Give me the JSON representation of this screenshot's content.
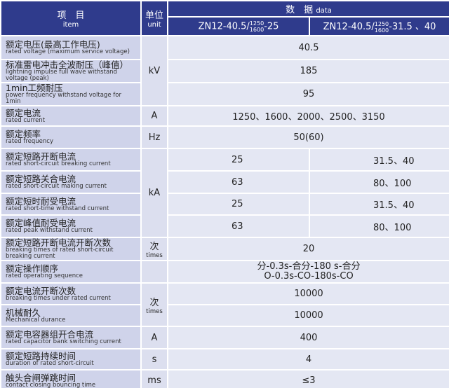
{
  "header": {
    "item_cn": "项　目",
    "item_en": "item",
    "unit_cn": "单位",
    "unit_en": "unit",
    "data_cn": "数　据",
    "data_en": "data",
    "models": [
      {
        "prefix": "ZN12-40.5/",
        "num": "1250",
        "den": "1600",
        "suffix": "-25"
      },
      {
        "prefix": "ZN12-40.5/",
        "num": "1250",
        "den": "1600",
        "suffix": "-31.5 、40"
      }
    ]
  },
  "rows": [
    {
      "cn": "额定电压(最高工作电压)",
      "en": "rated voltage (maximum service voltage)",
      "unit": {
        "symbol": "kV"
      },
      "values": [
        "40.5"
      ]
    },
    {
      "cn": "标准雷电冲击全波耐压（峰值）",
      "en": "lightning impulse full wave withstand voltage (peak)",
      "values": [
        "185"
      ]
    },
    {
      "cn": "1min工频耐压",
      "en": "power frequency withstand voltage for 1min",
      "values": [
        "95"
      ]
    },
    {
      "cn": "额定电流",
      "en": "rated current",
      "unit": {
        "symbol": "A"
      },
      "values": [
        "1250、1600、2000、2500、3150"
      ]
    },
    {
      "cn": "额定频率",
      "en": "rated frequency",
      "unit": {
        "symbol": "Hz"
      },
      "values": [
        "50(60)"
      ]
    },
    {
      "cn": "额定短路开断电流",
      "en": "rated short-circuit breaking current",
      "unit": {
        "symbol": "kA"
      },
      "values": [
        "25",
        "31.5、40"
      ]
    },
    {
      "cn": "额定短路关合电流",
      "en": "rated short-circuit making current",
      "values": [
        "63",
        "80、100"
      ]
    },
    {
      "cn": "额定短时耐受电流",
      "en": "rated short-time withstand current",
      "values": [
        "25",
        "31.5、40"
      ]
    },
    {
      "cn": "额定峰值耐受电流",
      "en": "rated peak withstand current",
      "values": [
        "63",
        "80、100"
      ]
    },
    {
      "cn": "额定短路开断电流开断次数",
      "en": "breaking times of rated short-circuit breaking current",
      "unit": {
        "symbol": "次",
        "en": "times"
      },
      "values": [
        "20"
      ]
    },
    {
      "cn": "额定操作顺序",
      "en": "rated operating sequence",
      "values": [
        [
          "分-0.3s-合分-180 s-合分",
          "O-0.3s-CO-180s-CO"
        ]
      ]
    },
    {
      "cn": "额定电流开断次数",
      "en": "breaking times under rated current",
      "unit": {
        "symbol": "次",
        "en": "times"
      },
      "values": [
        "10000"
      ]
    },
    {
      "cn": "机械耐久",
      "en": "Mechanical durance",
      "values": [
        "10000"
      ]
    },
    {
      "cn": "额定电容器组开合电流",
      "en": "rated capacitor bank switching current",
      "unit": {
        "symbol": "A"
      },
      "values": [
        "400"
      ]
    },
    {
      "cn": "额定短路持续时间",
      "en": "duration of rated short-circuit",
      "unit": {
        "symbol": "s"
      },
      "values": [
        "4"
      ]
    },
    {
      "cn": "触头合闸弹跳时间",
      "en": "contact closing bouncing time",
      "unit": {
        "symbol": "ms"
      },
      "values": [
        "≤3"
      ]
    }
  ]
}
